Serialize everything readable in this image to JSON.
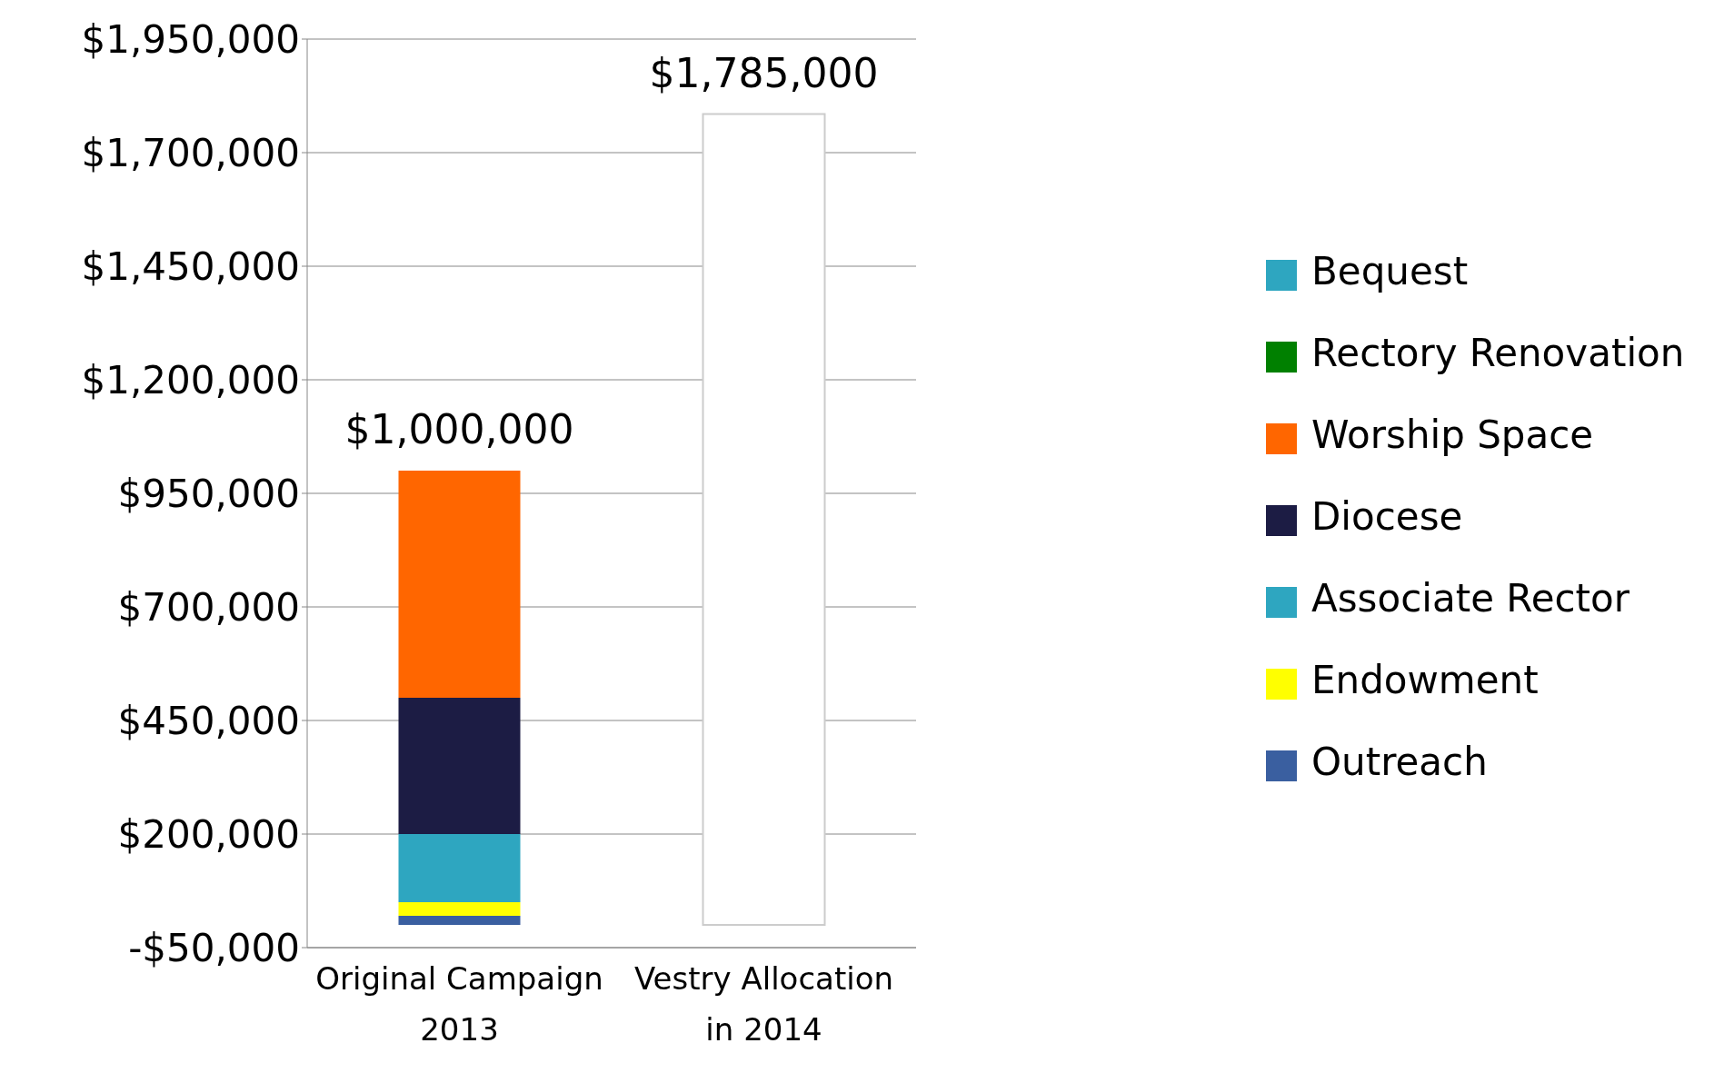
{
  "chart_data": {
    "type": "bar",
    "stacked": true,
    "categories": [
      "Original Campaign 2013",
      "Vestry Allocation in 2014"
    ],
    "series": [
      {
        "name": "Outreach",
        "color": "#3a5fa0",
        "values": [
          20000,
          null
        ]
      },
      {
        "name": "Endowment",
        "color": "#ffff00",
        "values": [
          30000,
          null
        ]
      },
      {
        "name": "Associate Rector",
        "color": "#2ea6c0",
        "values": [
          150000,
          null
        ]
      },
      {
        "name": "Diocese",
        "color": "#1c1c44",
        "values": [
          300000,
          null
        ]
      },
      {
        "name": "Worship Space",
        "color": "#ff6600",
        "values": [
          500000,
          null
        ]
      },
      {
        "name": "Rectory Renovation",
        "color": "#008000",
        "values": [
          0,
          null
        ]
      },
      {
        "name": "Bequest",
        "color": "#2ea6c0",
        "values": [
          0,
          null
        ]
      },
      {
        "color": "#ffffff",
        "values": [
          null,
          1785000
        ]
      }
    ],
    "totals": [
      "$1,000,000",
      "$1,785,000"
    ],
    "ylim": [
      -50000,
      1950000
    ],
    "yticks": [
      {
        "value": -50000,
        "label": "-$50,000"
      },
      {
        "value": 200000,
        "label": "$200,000"
      },
      {
        "value": 450000,
        "label": "$450,000"
      },
      {
        "value": 700000,
        "label": "$700,000"
      },
      {
        "value": 950000,
        "label": "$950,000"
      },
      {
        "value": 1200000,
        "label": "$1,200,000"
      },
      {
        "value": 1450000,
        "label": "$1,450,000"
      },
      {
        "value": 1700000,
        "label": "$1,700,000"
      },
      {
        "value": 1950000,
        "label": "$1,950,000"
      }
    ],
    "grid": "y",
    "legend": "right"
  }
}
